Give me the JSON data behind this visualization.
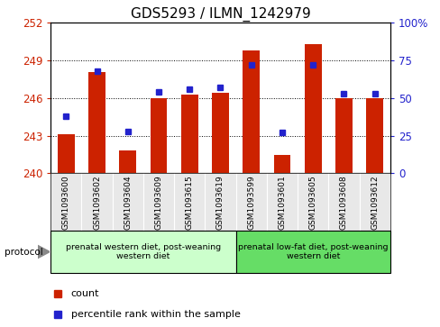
{
  "title": "GDS5293 / ILMN_1242979",
  "samples": [
    "GSM1093600",
    "GSM1093602",
    "GSM1093604",
    "GSM1093609",
    "GSM1093615",
    "GSM1093619",
    "GSM1093599",
    "GSM1093601",
    "GSM1093605",
    "GSM1093608",
    "GSM1093612"
  ],
  "counts": [
    243.1,
    248.1,
    241.8,
    246.0,
    246.3,
    246.4,
    249.8,
    241.5,
    250.3,
    246.0,
    246.0
  ],
  "percentiles": [
    38,
    68,
    28,
    54,
    56,
    57,
    72,
    27,
    72,
    53,
    53
  ],
  "ylim_left": [
    240,
    252
  ],
  "ylim_right": [
    0,
    100
  ],
  "yticks_left": [
    240,
    243,
    246,
    249,
    252
  ],
  "yticks_right": [
    0,
    25,
    50,
    75,
    100
  ],
  "bar_color": "#cc2200",
  "dot_color": "#2222cc",
  "group1_label": "prenatal western diet, post-weaning\nwestern diet",
  "group2_label": "prenatal low-fat diet, post-weaning\nwestern diet",
  "group1_count": 6,
  "group2_count": 5,
  "group1_color": "#ccffcc",
  "group2_color": "#66dd66",
  "protocol_label": "protocol",
  "legend_count": "count",
  "legend_percentile": "percentile rank within the sample",
  "bg_color": "#e8e8e8",
  "title_fontsize": 11,
  "axis_left_color": "#cc2200",
  "axis_right_color": "#2222cc"
}
